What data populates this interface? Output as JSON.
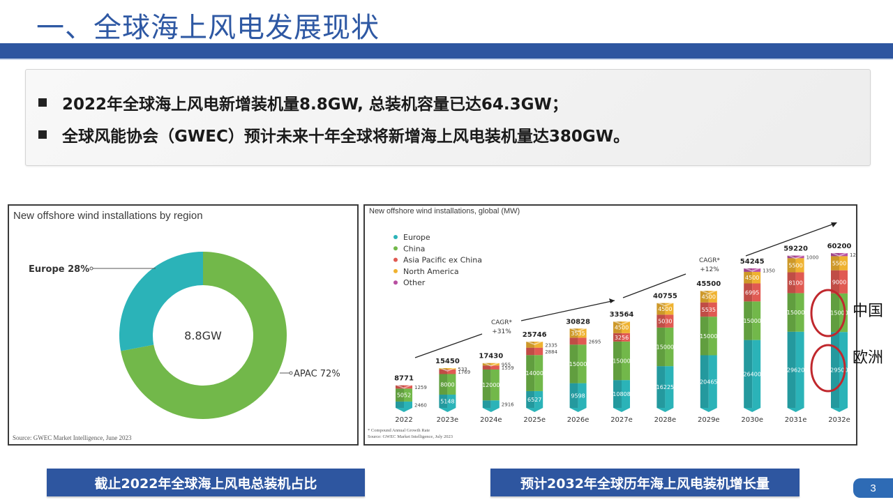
{
  "header": {
    "title": "一、全球海上风电发展现状"
  },
  "summary": {
    "bullets": [
      "2022年全球海上风电新增装机量8.8GW, 总装机容量已达64.3GW；",
      "全球风能协会（GWEC）预计未来十年全球将新增海上风电装机量达380GW。"
    ]
  },
  "colors": {
    "brand_blue": "#2e56a0",
    "europe": "#2bb3b8",
    "china": "#72b84a",
    "apac_ex_china": "#e05a52",
    "north_america": "#efb230",
    "other": "#b84fa1",
    "annotation_circle": "#c0282d"
  },
  "chart_data": [
    {
      "type": "pie",
      "variant": "donut",
      "title": "New offshore wind installations by region",
      "center_label": "8.8GW",
      "slices": [
        {
          "name": "Europe",
          "value": 28,
          "label": "Europe 28%",
          "color": "#2bb3b8"
        },
        {
          "name": "APAC",
          "value": 72,
          "label": "APAC 72%",
          "color": "#72b84a"
        }
      ],
      "source": "Source: GWEC Market Intelligence, June 2023"
    },
    {
      "type": "bar",
      "stacked": true,
      "title": "New offshore wind installations, global (MW)",
      "categories": [
        "2022",
        "2023e",
        "2024e",
        "2025e",
        "2026e",
        "2027e",
        "2028e",
        "2029e",
        "2030e",
        "2031e",
        "2032e"
      ],
      "totals": [
        8771,
        15450,
        17430,
        25746,
        30828,
        33564,
        40755,
        45500,
        54245,
        59220,
        60200
      ],
      "series": [
        {
          "name": "Europe",
          "color": "#2bb3b8",
          "values": [
            2460,
            5148,
            2916,
            6527,
            9598,
            10808,
            16225,
            20465,
            26400,
            29620,
            29500
          ]
        },
        {
          "name": "China",
          "color": "#72b84a",
          "values": [
            5052,
            8000,
            12000,
            14000,
            15000,
            15000,
            15000,
            15000,
            15000,
            15000,
            15000
          ]
        },
        {
          "name": "Asia Pacific ex China",
          "color": "#e05a52",
          "values": [
            1259,
            1769,
            1559,
            2884,
            2695,
            3256,
            5030,
            5535,
            6995,
            8100,
            9000
          ]
        },
        {
          "name": "North America",
          "color": "#efb230",
          "values": [
            0,
            533,
            955,
            2335,
            3535,
            4500,
            4500,
            4500,
            4500,
            5500,
            5500
          ]
        },
        {
          "name": "Other",
          "color": "#b84fa1",
          "values": [
            0,
            0,
            0,
            0,
            0,
            0,
            0,
            0,
            1350,
            1000,
            1200
          ]
        }
      ],
      "legend": [
        "Europe",
        "China",
        "Asia Pacific ex China",
        "North America",
        "Other"
      ],
      "legend_position": "top-left",
      "annotations": [
        {
          "text_line1": "CAGR*",
          "text_line2": "+31%"
        },
        {
          "text_line1": "CAGR*",
          "text_line2": "+12%"
        }
      ],
      "footnote": "* Compound Annual Growth Rate",
      "source": "Source: GWEC Market Intelligence, July 2023",
      "callouts": [
        {
          "label": "中国",
          "target": "China 2032e"
        },
        {
          "label": "欧洲",
          "target": "Europe 2032e"
        }
      ]
    }
  ],
  "captions": {
    "left": "截止2022年全球海上风电总装机占比",
    "right": "预计2032年全球历年海上风电装机增长量"
  },
  "page_number": "3"
}
